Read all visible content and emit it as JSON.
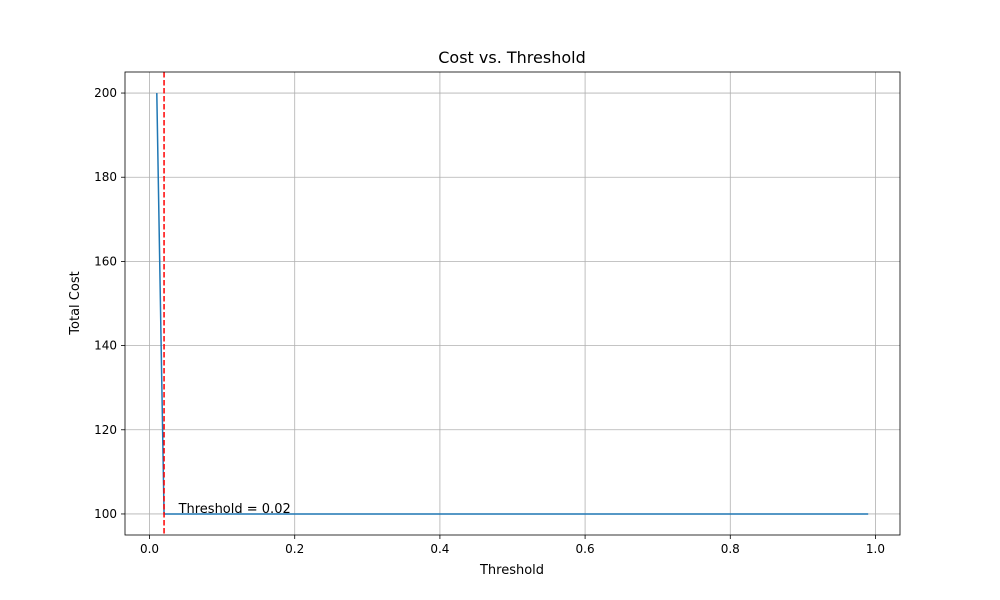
{
  "chart_data": {
    "type": "line",
    "title": "Cost vs. Threshold",
    "xlabel": "Threshold",
    "ylabel": "Total Cost",
    "xlim": [
      -0.0338,
      1.0338
    ],
    "ylim": [
      95,
      205
    ],
    "xticks": [
      0.0,
      0.2,
      0.4,
      0.6,
      0.8,
      1.0
    ],
    "xtick_labels": [
      "0.0",
      "0.2",
      "0.4",
      "0.6",
      "0.8",
      "1.0"
    ],
    "yticks": [
      100,
      120,
      140,
      160,
      180,
      200
    ],
    "ytick_labels": [
      "100",
      "120",
      "140",
      "160",
      "180",
      "200"
    ],
    "grid": true,
    "series": [
      {
        "color": "#1f77b4",
        "x": [
          0.01,
          0.02,
          0.99
        ],
        "y": [
          200,
          100,
          100
        ]
      }
    ],
    "vline": {
      "x": 0.02,
      "color": "#ff0000",
      "style": "dashed"
    },
    "annotation": {
      "text": "Threshold = 0.02",
      "x": 0.04,
      "y": 100
    }
  }
}
